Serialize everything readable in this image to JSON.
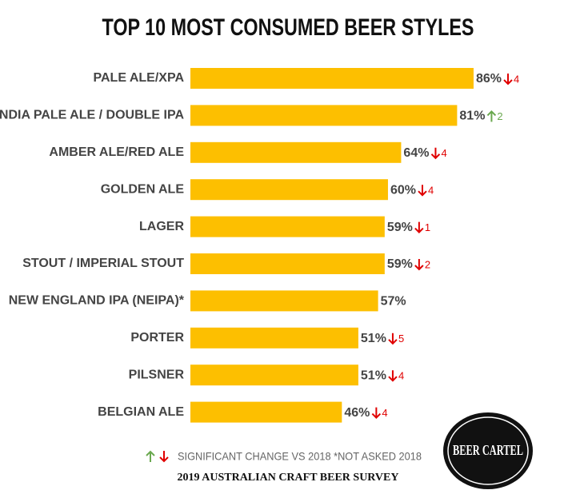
{
  "chart_data": {
    "type": "bar",
    "orientation": "horizontal",
    "title": "TOP 10 MOST CONSUMED BEER STYLES",
    "categories": [
      "PALE ALE/XPA",
      "INDIA PALE ALE / DOUBLE IPA",
      "AMBER ALE/RED ALE",
      "GOLDEN ALE",
      "LAGER",
      "STOUT / IMPERIAL STOUT",
      "NEW ENGLAND IPA (NEIPA)*",
      "PORTER",
      "PILSNER",
      "BELGIAN ALE"
    ],
    "values": [
      86,
      81,
      64,
      60,
      59,
      59,
      57,
      51,
      51,
      46
    ],
    "value_labels": [
      "86%",
      "81%",
      "64%",
      "60%",
      "59%",
      "59%",
      "57%",
      "51%",
      "51%",
      "46%"
    ],
    "color": "#fdbf00",
    "changes": [
      {
        "direction": "down",
        "value": 4
      },
      {
        "direction": "up",
        "value": 2
      },
      {
        "direction": "down",
        "value": 4
      },
      {
        "direction": "down",
        "value": 4
      },
      {
        "direction": "down",
        "value": 1
      },
      {
        "direction": "down",
        "value": 2
      },
      null,
      {
        "direction": "down",
        "value": 5
      },
      {
        "direction": "down",
        "value": 4
      },
      {
        "direction": "down",
        "value": 4
      }
    ],
    "up_color": "#6aa84f",
    "down_color": "#e00000",
    "legend_text": "SIGNIFICANT CHANGE VS 2018 *NOT ASKED 2018",
    "source": "2019 AUSTRALIAN CRAFT BEER SURVEY",
    "logo": "BEER CARTEL"
  }
}
